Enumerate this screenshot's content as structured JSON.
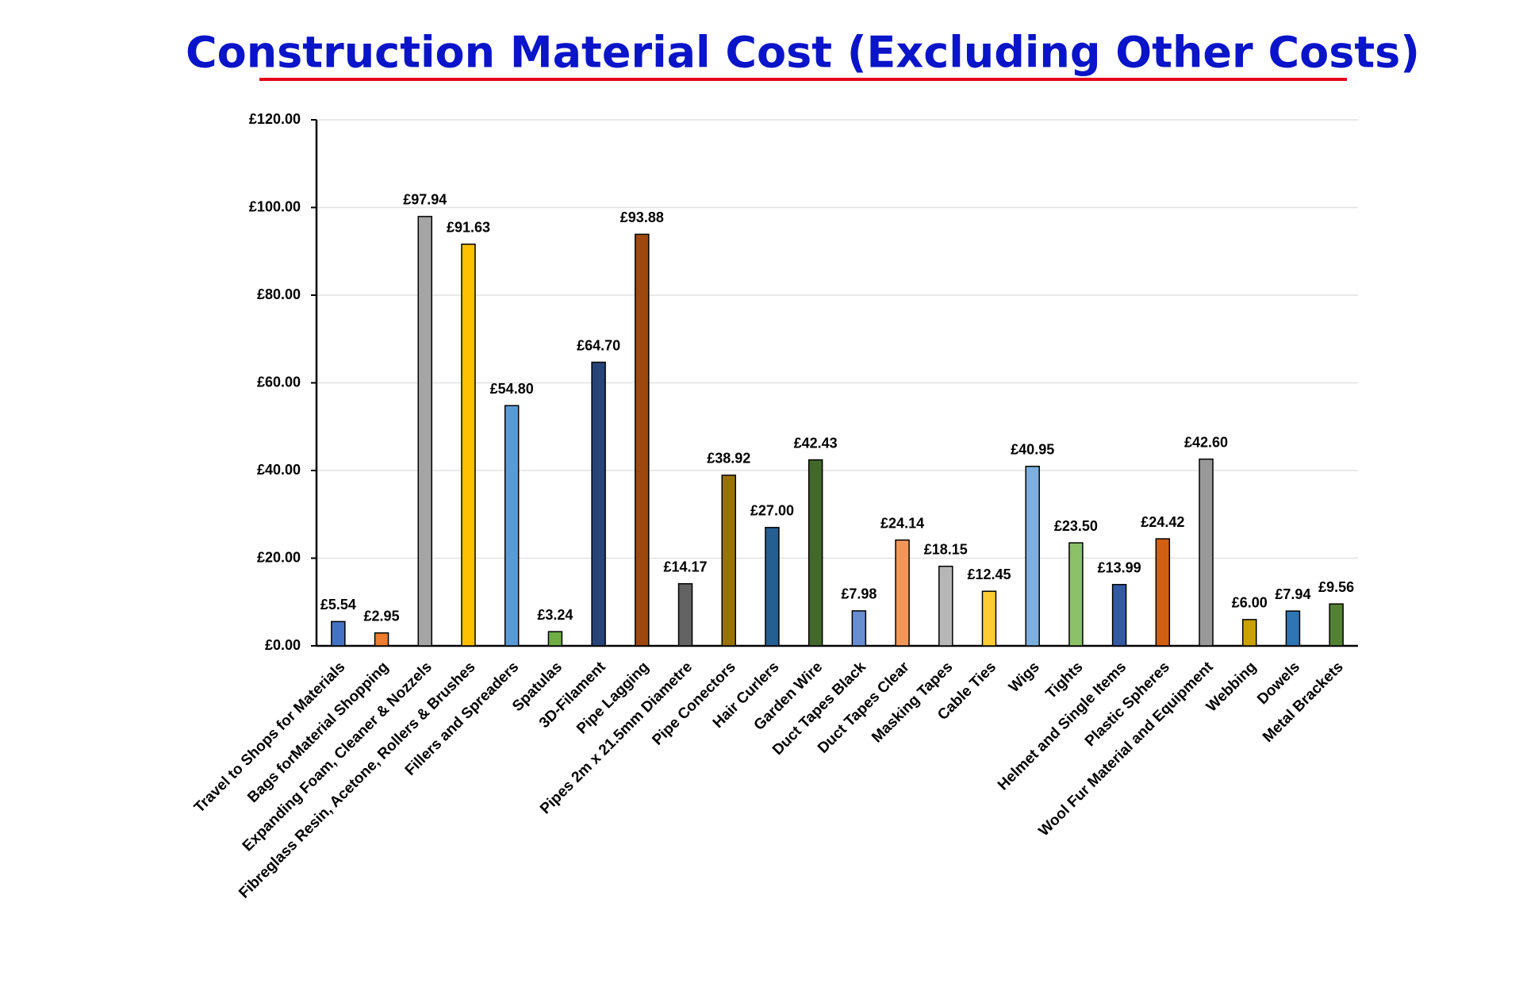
{
  "chart_data": {
    "type": "bar",
    "title": "Construction Material Cost (Excluding Other Costs)",
    "categories": [
      "Travel to Shops for Materials",
      "Bags forMaterial Shopping",
      "Expanding Foam, Cleaner & Nozzels",
      "Fibreglass Resin, Acetone, Rollers & Brushes",
      "Fillers and Spreaders",
      "Spatulas",
      "3D-Filament",
      "Pipe Lagging",
      "Pipes 2m x 21.5mm Diametre",
      "Pipe Conectors",
      "Hair Curlers",
      "Garden Wire",
      "Duct Tapes Black",
      "Duct Tapes Clear",
      "Masking Tapes",
      "Cable Ties",
      "Wigs",
      "Tights",
      "Helmet and Single Items",
      "Plastic Spheres",
      "Wool Fur Material and Equipment",
      "Webbing",
      "Dowels",
      "Metal Brackets"
    ],
    "values": [
      5.54,
      2.95,
      97.94,
      91.63,
      54.8,
      3.24,
      64.7,
      93.88,
      14.17,
      38.92,
      27.0,
      42.43,
      7.98,
      24.14,
      18.15,
      12.45,
      40.95,
      23.5,
      13.99,
      24.42,
      42.6,
      6.0,
      7.94,
      9.56
    ],
    "value_labels": [
      "£5.54",
      "£2.95",
      "£97.94",
      "£91.63",
      "£54.80",
      "£3.24",
      "£64.70",
      "£93.88",
      "£14.17",
      "£38.92",
      "£27.00",
      "£42.43",
      "£7.98",
      "£24.14",
      "£18.15",
      "£12.45",
      "£40.95",
      "£23.50",
      "£13.99",
      "£24.42",
      "£42.60",
      "£6.00",
      "£7.94",
      "£9.56"
    ],
    "colors": [
      "#4472c4",
      "#ed7d31",
      "#a5a5a5",
      "#ffc000",
      "#5b9bd5",
      "#70ad47",
      "#264478",
      "#9e480e",
      "#636363",
      "#997300",
      "#255e91",
      "#43682b",
      "#698ed0",
      "#f1975a",
      "#b7b7b7",
      "#ffcd33",
      "#7cafdd",
      "#8cc168",
      "#335aa1",
      "#d26012",
      "#999999",
      "#c9a100",
      "#2e75b6",
      "#548235"
    ],
    "ylim": [
      0,
      120
    ],
    "yticks": [
      {
        "value": 0,
        "label": "£0.00"
      },
      {
        "value": 20,
        "label": "£20.00"
      },
      {
        "value": 40,
        "label": "£40.00"
      },
      {
        "value": 60,
        "label": "£60.00"
      },
      {
        "value": 80,
        "label": "£80.00"
      },
      {
        "value": 100,
        "label": "£100.00"
      },
      {
        "value": 120,
        "label": "£120.00"
      }
    ],
    "grid": true
  }
}
